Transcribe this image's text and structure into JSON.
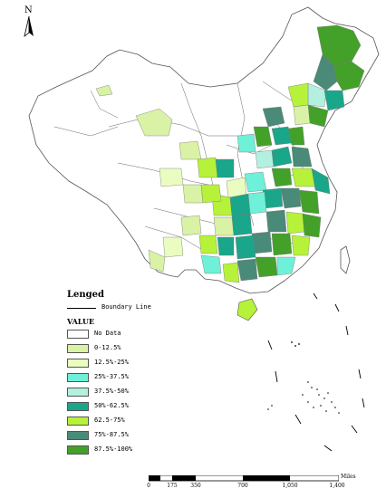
{
  "north_label": "N",
  "legend": {
    "title": "Lenged",
    "boundary_label": "Boundary Line",
    "value_title": "VALUE",
    "items": [
      {
        "label": "No Data",
        "color": "#ffffff"
      },
      {
        "label": "0-12.5%",
        "color": "#d9f2a6"
      },
      {
        "label": "12.5%-25%",
        "color": "#eafcc0"
      },
      {
        "label": "25%-37.5%",
        "color": "#6ff0d8"
      },
      {
        "label": "37.5%-50%",
        "color": "#b4f0e0"
      },
      {
        "label": "50%-62.5%",
        "color": "#1aa68a"
      },
      {
        "label": "62.5-75%",
        "color": "#b6f23a"
      },
      {
        "label": "75%-87.5%",
        "color": "#4a8a78"
      },
      {
        "label": "87.5%-100%",
        "color": "#43a12a"
      }
    ]
  },
  "scale": {
    "unit": "Miles",
    "ticks": [
      "0",
      "175",
      "350",
      "700",
      "1,050",
      "1,400"
    ]
  }
}
